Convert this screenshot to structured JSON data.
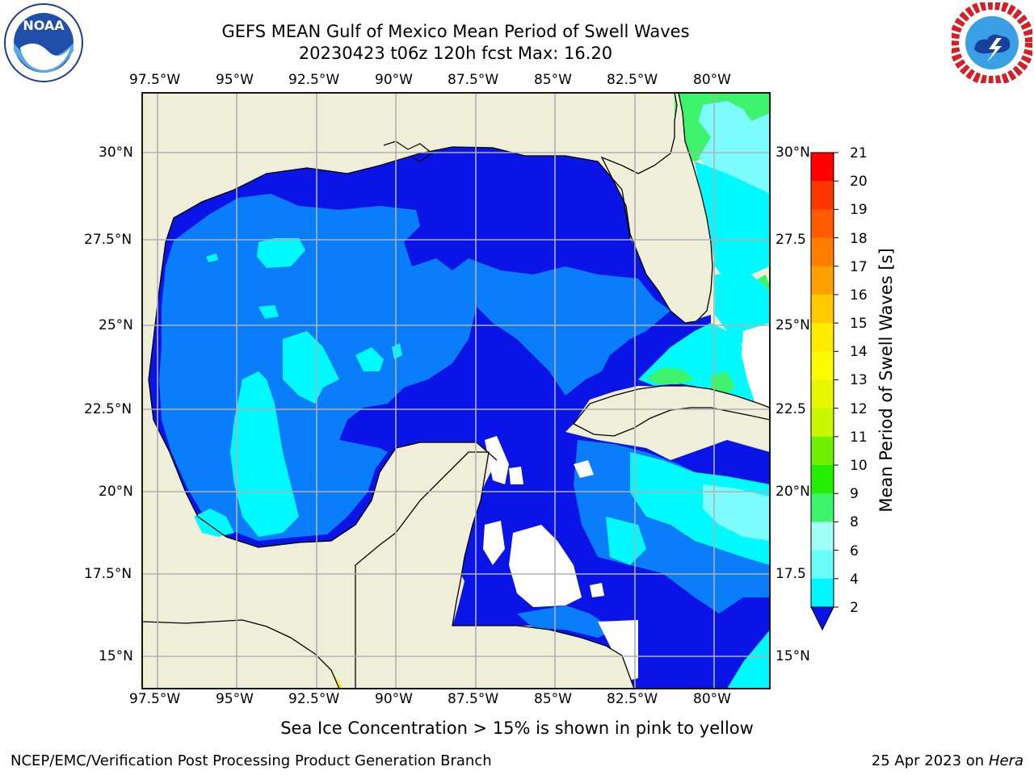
{
  "header": {
    "title_line1": "GEFS MEAN Gulf of Mexico Mean Period of Swell Waves",
    "title_line2": "20230423 t06z 120h fcst   Max: 16.20"
  },
  "logos": {
    "left": "noaa-logo",
    "right": "nws-logo"
  },
  "map": {
    "lon_labels": [
      "97.5°W",
      "95°W",
      "92.5°W",
      "90°W",
      "87.5°W",
      "85°W",
      "82.5°W",
      "80°W"
    ],
    "lat_labels_left": [
      "30°N",
      "27.5°N",
      "25°N",
      "22.5°N",
      "20°N",
      "17.5°N",
      "15°N"
    ],
    "lat_labels_right": [
      "30°N",
      "27.5",
      "25°N",
      "22.5",
      "20°N",
      "17.5",
      "15°N"
    ],
    "colors": {
      "land": "#efeed9",
      "ocean_deep": "#0a14e6",
      "ocean_blue": "#0a7dfa",
      "ocean_cyan": "#00faff",
      "ocean_lightcyan": "#7dfcff",
      "ocean_green": "#3df36b",
      "ice_yellow": "#fff200",
      "ice_orange": "#ffa000"
    }
  },
  "colorbar": {
    "title": "Mean Period of Swell Waves [s]",
    "ticks": [
      "21",
      "20",
      "19",
      "18",
      "17",
      "16",
      "15",
      "14",
      "13",
      "12",
      "11",
      "10",
      "9",
      "8",
      "6",
      "4",
      "2"
    ],
    "colors": [
      "#ff0000",
      "#ff3500",
      "#ff5a00",
      "#ff7d00",
      "#ffa000",
      "#ffc800",
      "#ffeb00",
      "#fdfb00",
      "#e5f700",
      "#c8f800",
      "#6ef000",
      "#22f000",
      "#3cf36c",
      "#a0fff7",
      "#68fdf9",
      "#00f5ff",
      "#0a7dfa"
    ],
    "extend_color": "#0a14e6"
  },
  "footer": {
    "ice_note": "Sea Ice Concentration > 15% is shown in pink to yellow",
    "left": "NCEP/EMC/Verification Post Processing Product Generation Branch",
    "right_prefix": "25 Apr 2023 on ",
    "right_host": "Hera"
  }
}
